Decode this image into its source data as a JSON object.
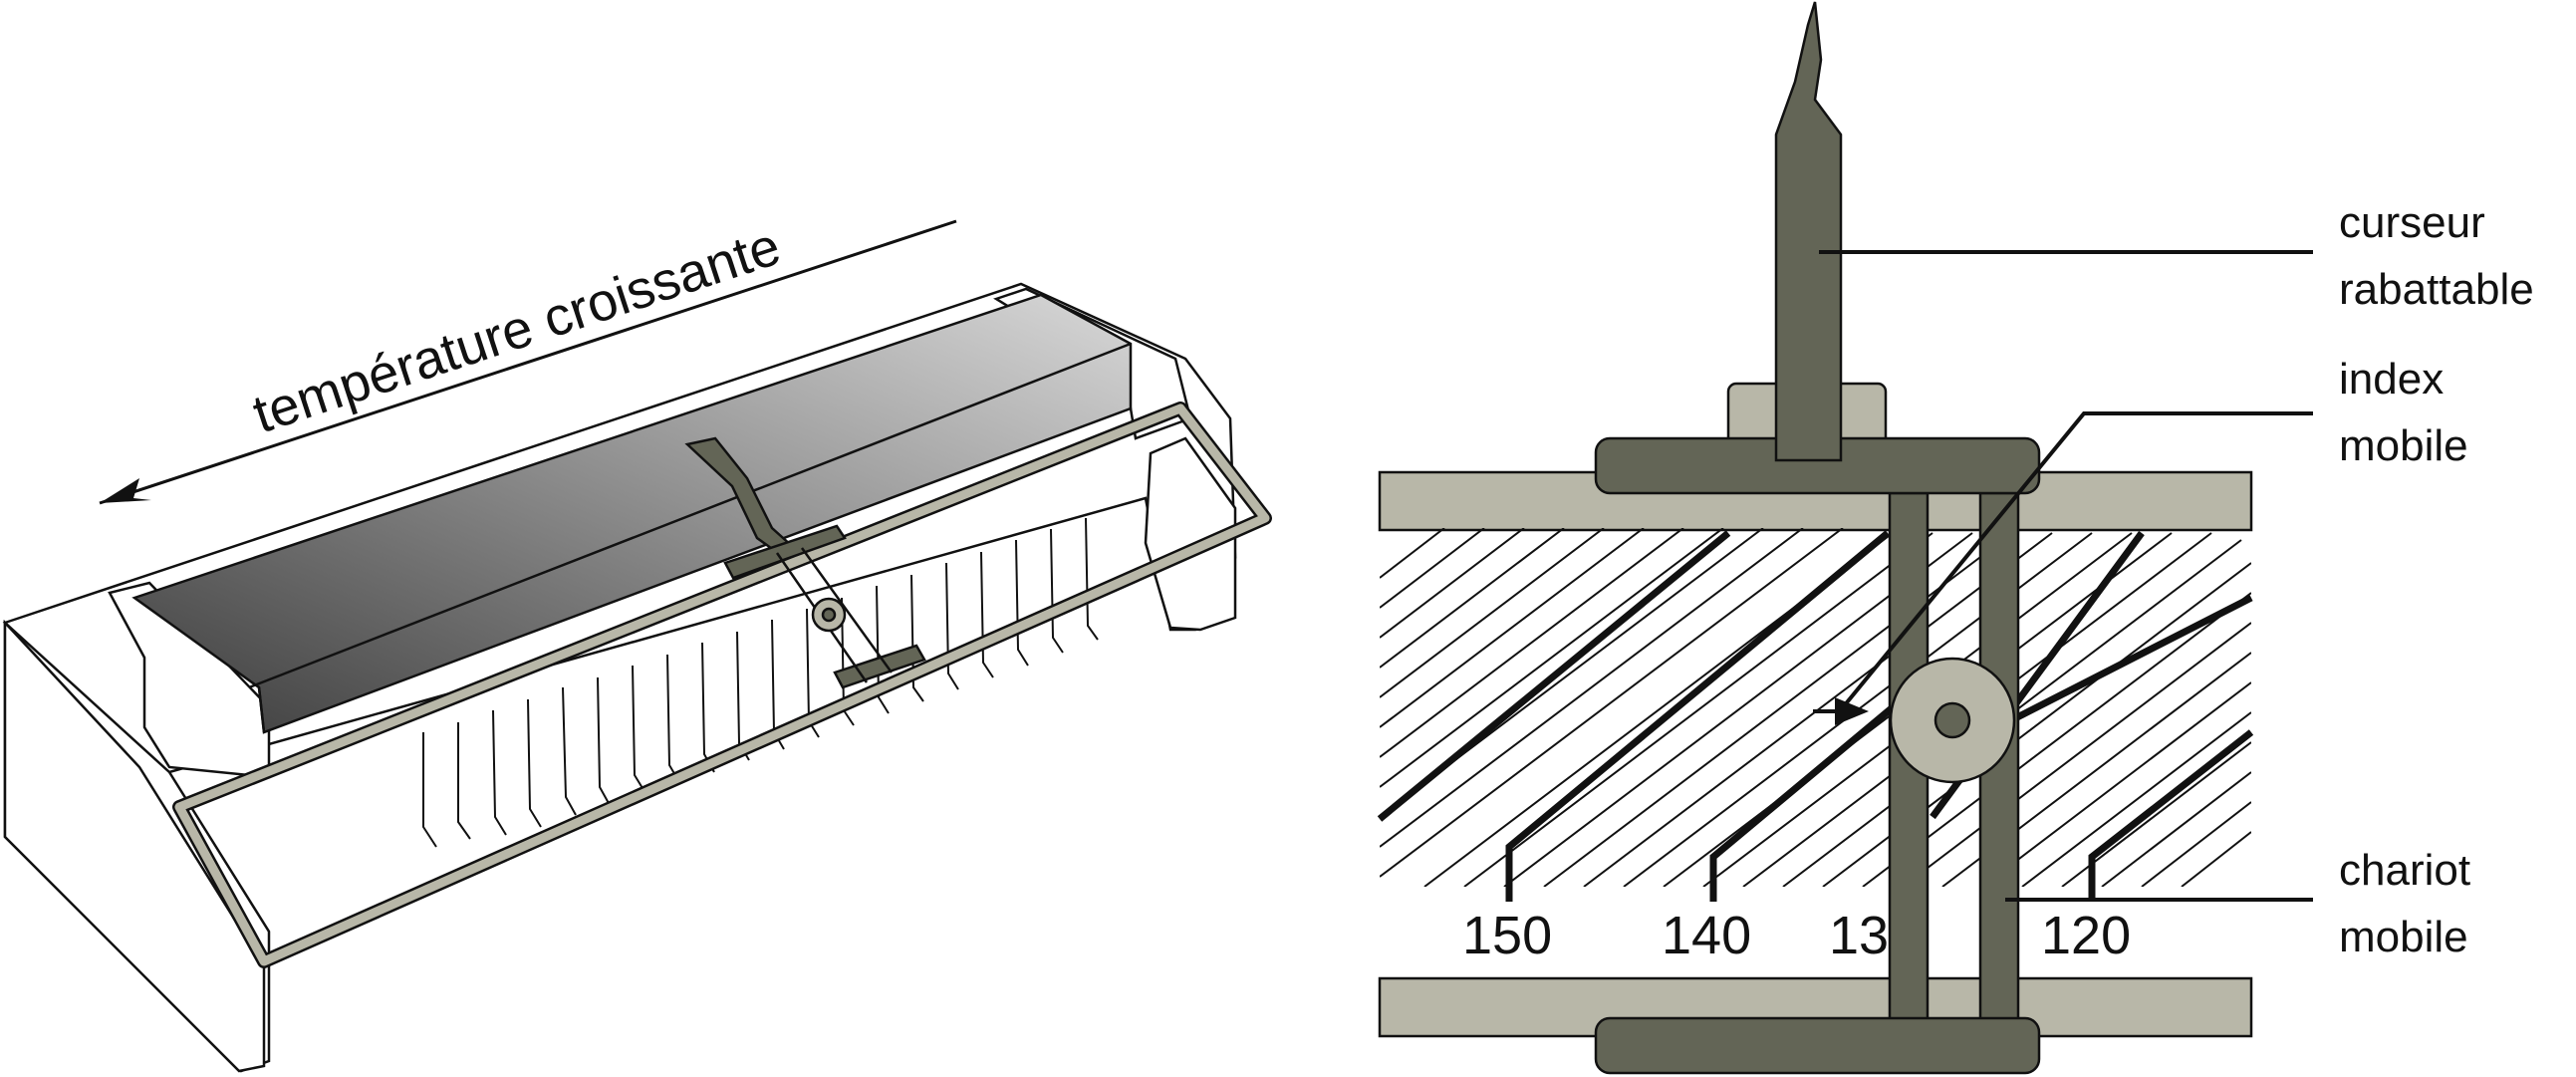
{
  "left_figure": {
    "arrow_label": "température croissante"
  },
  "right_figure": {
    "labels": {
      "curseur_line1": "curseur",
      "curseur_line2": "rabattable",
      "index_line1": "index",
      "index_line2": "mobile",
      "chariot_line1": "chariot",
      "chariot_line2": "mobile"
    },
    "scale_numbers": [
      "150",
      "140",
      "13",
      "120"
    ]
  },
  "colors": {
    "dark_part": "#636556",
    "light_part": "#b8b7a8",
    "bench_gradient_start": "#3c3c3c",
    "bench_gradient_end": "#d8d8d8",
    "line": "#111111"
  }
}
